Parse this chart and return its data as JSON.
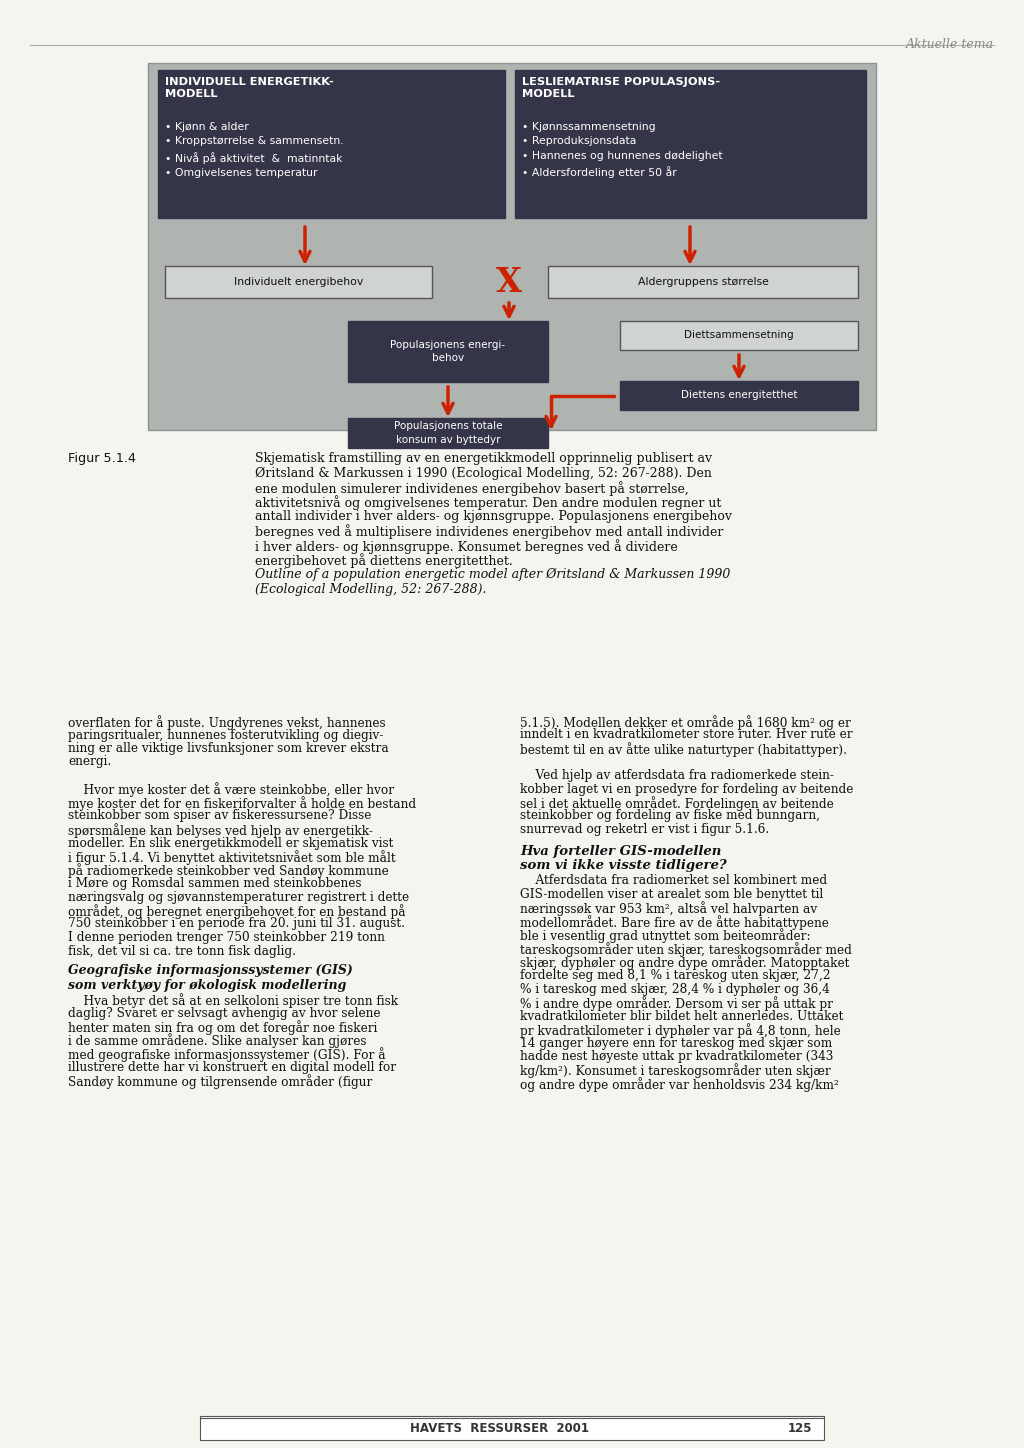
{
  "page_background": "#f5f5f0",
  "header_text": "Aktuelle tema",
  "diagram_bg": "#b8bcb8",
  "dark_box_bg": "#3a3a4a",
  "dark_box_text": "#ffffff",
  "light_box_bg": "#d8dcd8",
  "light_box_border": "#555555",
  "arrow_color": "#cc2200",
  "x_color": "#cc2200",
  "left_top_title": "INDIVIDUELL ENERGETIKK-\nMODELL",
  "left_top_bullets": "• Kjønn & alder\n• Kroppstørrelse & sammensetn.\n• Nivå på aktivitet  &  matinntak\n• Omgivelsenes temperatur",
  "right_top_title": "LESLIEMATRISE POPULASJONS-\nMODELL",
  "right_top_bullets": "• Kjønnssammensetning\n• Reproduksjonsdata\n• Hannenes og hunnenes dødelighet\n• Aldersfordeling etter 50 år",
  "box1_text": "Individuelt energibehov",
  "box2_text": "Aldergruppens størrelse",
  "box3_text": "Populasjonens energi-\nbehov",
  "box4_text": "Diettsammensetning",
  "box5_text": "Diettens energitetthet",
  "box6_text": "Populasjonens totale\nkonsum av byttedyr",
  "fignum": "Figur 5.1.4",
  "caption_normal": "Skjematisk framstilling av en energetikkmodell opprinnelig publisert av\nØritsland & Markussen i 1990 (Ecological Modelling, 52: 267-288). Den\nene modulen simulerer individenes energibehov basert på størrelse,\naktivitetsnivå og omgivelsenes temperatur. Den andre modulen regner ut\nantall individer i hver alders- og kjønnsgruppe. Populasjonens energibehov\nberegnes ved å multiplisere individenes energibehov med antall individer\ni hver alders- og kjønnsgruppe. Konsumet beregnes ved å dividere\nenergibehovet på diettens energitetthet.",
  "caption_italic": "Outline of a population energetic model after Øritsland & Markussen 1990\n(Ecological Modelling, 52: 267-288).",
  "body_left_col": "overflaten for å puste. Ungdyrenes vekst, hannenes\nparingsritualer, hunnenes fosterutvikling og diegiv-\nning er alle viktige livsfunksjoner som krever ekstra\nenergi.\n\n    Hvor mye koster det å være steinkobbe, eller hvor\nmye koster det for en fiskeriforvalter å holde en bestand\nsteinkobber som spiser av fiskeressursene? Disse\nspørsmålene kan belyses ved hjelp av energetikk-\nmodeller. En slik energetikkmodell er skjematisk vist\ni figur 5.1.4. Vi benyttet aktivitetsnivået som ble målt\npå radiomerkede steinkobber ved Sandøy kommune\ni Møre og Romsdal sammen med steinkobbenes\nnæringsvalg og sjøvannstemperaturer registrert i dette\nområdet, og beregnet energibehovet for en bestand på\n750 steinkobber i en periode fra 20. juni til 31. august.\nI denne perioden trenger 750 steinkobber 219 tonn\nfisk, det vil si ca. tre tonn fisk daglig.",
  "body_left_col2_title": "Geografiske informasjonssystemer (GIS)\nsom verktyøy for økologisk modellering",
  "body_left_col2": "    Hva betyr det så at en selkoloni spiser tre tonn fisk\ndaglig? Svaret er selvsagt avhengig av hvor selene\nhenter maten sin fra og om det foregår noe fiskeri\ni de samme områdene. Slike analyser kan gjøres\nmed geografiske informasjonssystemer (GIS). For å\nillustrere dette har vi konstruert en digital modell for\nSandøy kommune og tilgrensende områder (figur",
  "body_right_col": "5.1.5). Modellen dekker et område på 1680 km² og er\ninndelt i en kvadratkilometer store ruter. Hver rute er\nbestemt til en av åtte ulike naturtyper (habitattyper).\n\n    Ved hjelp av atferdsdata fra radiomerkede stein-\nkobber laget vi en prosedyre for fordeling av beitende\nsel i det aktuelle området. Fordelingen av beitende\nsteinkobber og fordeling av fiske med bunngarn,\nsnurrevad og reketrl er vist i figur 5.1.6.",
  "body_right_col2_title": "Hva forteller GIS-modellen\nsom vi ikke visste tidligere?",
  "body_right_col2": "    Atferdsdata fra radiomerket sel kombinert med\nGIS-modellen viser at arealet som ble benyttet til\nnæringssøk var 953 km², altså vel halvparten av\nmodellområdet. Bare fire av de åtte habitattypene\nble i vesentlig grad utnyttet som beiteområder:\ntareskogsområder uten skjær, tareskogsområder med\nskjær, dyphøler og andre dype områder. Matopptaket\nfordelte seg med 8,1 % i tareskog uten skjær, 27,2\n% i tareskog med skjær, 28,4 % i dyphøler og 36,4\n% i andre dype områder. Dersom vi ser på uttak pr\nkvadratkilometer blir bildet helt annerledes. Uttaket\npr kvadratkilometer i dyphøler var på 4,8 tonn, hele\n14 ganger høyere enn for tareskog med skjær som\nhadde nest høyeste uttak pr kvadratkilometer (343\nkg/km²). Konsumet i tareskogsområder uten skjær\nog andre dype områder var henholdsvis 234 kg/km²",
  "footer_text": "HAVETS  RESSURSER  2001",
  "footer_page": "125"
}
